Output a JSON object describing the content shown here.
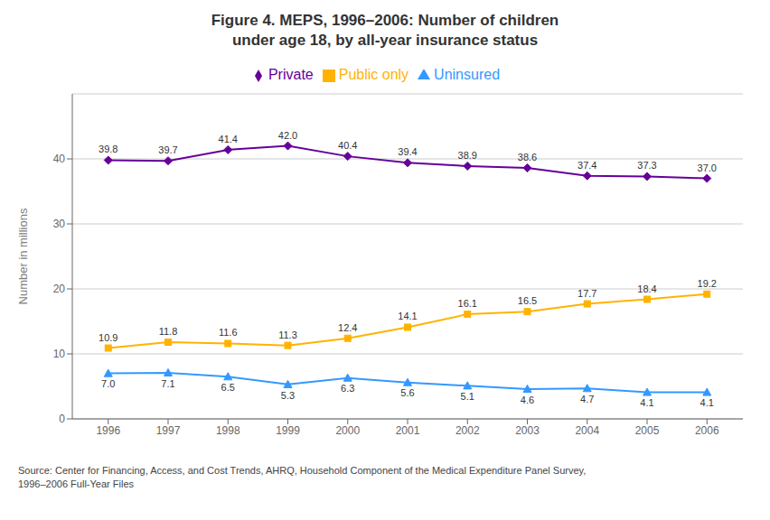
{
  "chart_data": {
    "type": "line",
    "title": "Figure 4. MEPS, 1996–2006: Number of children\nunder age 18, by all-year insurance status",
    "ylabel": "Number in millions",
    "annotations": [
      "Source: Center for Financing, Access, and Cost Trends, AHRQ, Household Component of the Medical Expenditure Panel Survey,\n1996–2006 Full-Year Files"
    ],
    "x": [
      1996,
      1997,
      1998,
      1999,
      2000,
      2001,
      2002,
      2003,
      2004,
      2005,
      2006
    ],
    "xlim": [
      1995.4,
      2006.6
    ],
    "xticks": [
      1996,
      1997,
      1998,
      1999,
      2000,
      2001,
      2002,
      2003,
      2004,
      2005,
      2006
    ],
    "ylim": [
      0,
      50
    ],
    "yticks": [
      0,
      10,
      20,
      30,
      40
    ],
    "grid": true,
    "legend": "top",
    "data_labels": true,
    "series": [
      {
        "name": "Private",
        "color": "#660099",
        "marker": "diamond",
        "values": [
          39.8,
          39.7,
          41.4,
          42.0,
          40.4,
          39.4,
          38.9,
          38.6,
          37.4,
          37.3,
          37.0
        ],
        "value_labels": [
          "39.8",
          "39.7",
          "41.4",
          "42.0",
          "40.4",
          "39.4",
          "38.9",
          "38.6",
          "37.4",
          "37.3",
          "37.0"
        ]
      },
      {
        "name": "Public only",
        "color": "#FFB300",
        "marker": "square",
        "values": [
          10.9,
          11.8,
          11.6,
          11.3,
          12.4,
          14.1,
          16.1,
          16.5,
          17.7,
          18.4,
          19.2
        ],
        "value_labels": [
          "10.9",
          "11.8",
          "11.6",
          "11.3",
          "12.4",
          "14.1",
          "16.1",
          "16.5",
          "17.7",
          "18.4",
          "19.2"
        ]
      },
      {
        "name": "Uninsured",
        "color": "#3399FF",
        "marker": "triangle",
        "values": [
          7.0,
          7.1,
          6.5,
          5.3,
          6.3,
          5.6,
          5.1,
          4.6,
          4.7,
          4.1,
          4.1
        ],
        "value_labels": [
          "7.0",
          "7.1",
          "6.5",
          "5.3",
          "6.3",
          "5.6",
          "5.1",
          "4.6",
          "4.7",
          "4.1",
          "4.1"
        ]
      }
    ]
  }
}
